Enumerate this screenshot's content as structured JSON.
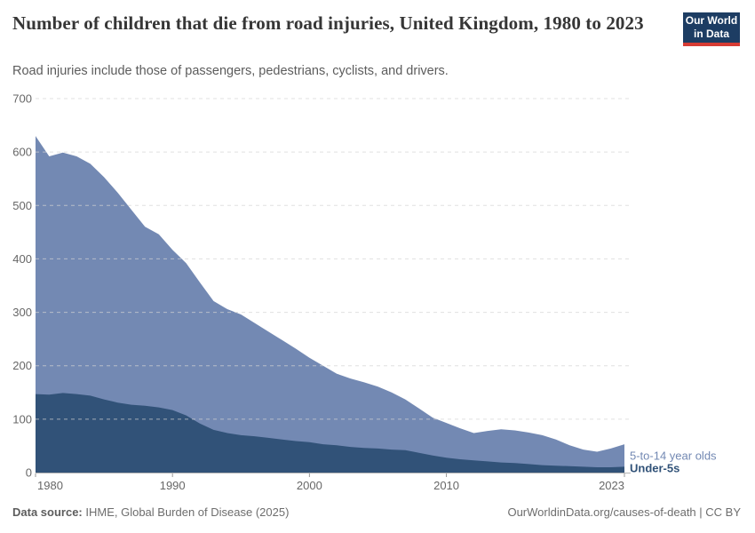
{
  "header": {
    "title": "Number of children that die from road injuries, United Kingdom, 1980 to 2023",
    "subtitle": "Road injuries include those of passengers, pedestrians, cyclists, and drivers.",
    "logo": {
      "line1": "Our World",
      "line2": "in Data",
      "bg_color": "#1d3d63",
      "bar_color": "#d73c34"
    }
  },
  "chart_data": {
    "type": "area",
    "stacked": true,
    "title": "Number of children that die from road injuries, United Kingdom, 1980 to 2023",
    "xlabel": "",
    "ylabel": "",
    "ylim": [
      0,
      700
    ],
    "yticks": [
      0,
      100,
      200,
      300,
      400,
      500,
      600,
      700
    ],
    "xticks": [
      1980,
      1990,
      2000,
      2010,
      2023
    ],
    "grid": "horizontal-dashed",
    "legend_position": "right-of-area-end",
    "x": [
      1980,
      1981,
      1982,
      1983,
      1984,
      1985,
      1986,
      1987,
      1988,
      1989,
      1990,
      1991,
      1992,
      1993,
      1994,
      1995,
      1996,
      1997,
      1998,
      1999,
      2000,
      2001,
      2002,
      2003,
      2004,
      2005,
      2006,
      2007,
      2008,
      2009,
      2010,
      2011,
      2012,
      2013,
      2014,
      2015,
      2016,
      2017,
      2018,
      2019,
      2020,
      2021,
      2022,
      2023
    ],
    "series": [
      {
        "name": "Under-5s",
        "color": "#315278",
        "values": [
          147,
          146,
          149,
          147,
          144,
          137,
          131,
          127,
          125,
          122,
          117,
          107,
          92,
          80,
          74,
          70,
          68,
          65,
          62,
          59,
          57,
          53,
          51,
          48,
          46,
          45,
          43,
          42,
          37,
          32,
          28,
          25,
          23,
          21,
          19,
          18,
          16,
          14,
          13,
          12,
          11,
          10,
          10,
          11
        ]
      },
      {
        "name": "5-to-14 year olds",
        "color": "#7389b3",
        "values": [
          483,
          446,
          450,
          445,
          434,
          416,
          393,
          365,
          335,
          324,
          300,
          285,
          264,
          241,
          232,
          226,
          212,
          199,
          186,
          173,
          158,
          147,
          134,
          128,
          123,
          116,
          107,
          95,
          83,
          71,
          65,
          58,
          51,
          57,
          62,
          61,
          59,
          56,
          49,
          39,
          32,
          29,
          35,
          42
        ]
      }
    ]
  },
  "axis_colors": {
    "grid": "#d4d4d4",
    "zero_line": "#b3b3b3",
    "tick": "#999999",
    "label": "#676767"
  },
  "footer": {
    "source_label": "Data source:",
    "source_value": " IHME, Global Burden of Disease (2025)",
    "attribution": "OurWorldinData.org/causes-of-death | CC BY"
  }
}
